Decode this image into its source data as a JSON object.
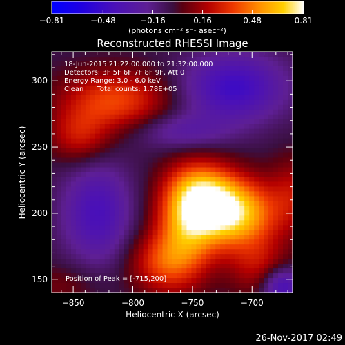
{
  "chart_data": {
    "type": "heatmap",
    "title": "Reconstructed RHESSI Image",
    "info_lines": [
      "18-Jun-2015 21:22:00.000 to 21:32:00.000",
      "Detectors: 3F 5F 6F 7F 8F 9F, Att 0",
      "Energy Range: 3.0 - 6.0 keV",
      "Clean      Total counts: 1.78E+05"
    ],
    "peak_label": "Position of Peak = [-715,200]",
    "xlabel": "Heliocentric X (arcsec)",
    "ylabel": "Heliocentric Y (arcsec)",
    "xlim": [
      -868,
      -666
    ],
    "ylim": [
      140,
      322
    ],
    "xticks": [
      -850,
      -800,
      -750,
      -700
    ],
    "xtick_labels": [
      "−850",
      "−800",
      "−750",
      "−700"
    ],
    "yticks": [
      150,
      200,
      250,
      300
    ],
    "ytick_labels": [
      "150",
      "200",
      "250",
      "300"
    ],
    "peak": [
      -715,
      200
    ],
    "colorbar": {
      "label": "(photons cm⁻² s⁻¹ asec⁻²)",
      "range": [
        -0.81,
        0.81
      ],
      "ticks": [
        -0.81,
        -0.48,
        -0.16,
        0.16,
        0.48,
        0.81
      ],
      "tick_labels": [
        "−0.81",
        "−0.48",
        "−0.16",
        "0.16",
        "0.48",
        "0.81"
      ]
    },
    "sources": [
      {
        "x": -718,
        "y": 200,
        "sx": 26,
        "sy": 18,
        "amp": 0.8
      },
      {
        "x": -755,
        "y": 190,
        "sx": 18,
        "sy": 26,
        "amp": 0.48
      },
      {
        "x": -742,
        "y": 218,
        "sx": 20,
        "sy": 16,
        "amp": 0.4
      },
      {
        "x": -775,
        "y": 162,
        "sx": 20,
        "sy": 16,
        "amp": 0.35
      },
      {
        "x": -815,
        "y": 285,
        "sx": 32,
        "sy": 16,
        "amp": 0.42
      },
      {
        "x": -845,
        "y": 258,
        "sx": 18,
        "sy": 14,
        "amp": 0.28
      },
      {
        "x": -695,
        "y": 160,
        "sx": 18,
        "sy": 16,
        "amp": 0.25
      },
      {
        "x": -665,
        "y": 215,
        "sx": 14,
        "sy": 20,
        "amp": 0.22
      },
      {
        "x": -715,
        "y": 295,
        "sx": 30,
        "sy": 18,
        "amp": -0.42
      },
      {
        "x": -830,
        "y": 200,
        "sx": 20,
        "sy": 26,
        "amp": -0.36
      },
      {
        "x": -760,
        "y": 262,
        "sx": 28,
        "sy": 10,
        "amp": -0.22
      },
      {
        "x": -675,
        "y": 145,
        "sx": 12,
        "sy": 10,
        "amp": -0.4
      },
      {
        "x": -860,
        "y": 145,
        "sx": 22,
        "sy": 12,
        "amp": 0.12
      }
    ],
    "baseline": -0.05
  },
  "footer": {
    "timestamp": "26-Nov-2017 02:49"
  }
}
